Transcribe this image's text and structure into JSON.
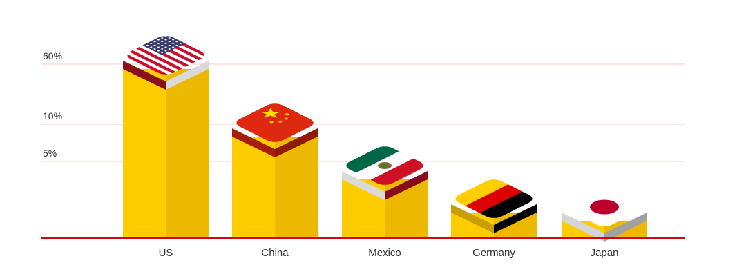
{
  "chart_data": {
    "type": "bar",
    "title": "",
    "xlabel": "",
    "ylabel": "",
    "categories": [
      "US",
      "China",
      "Mexico",
      "Germany",
      "Japan"
    ],
    "flags": [
      "us-flag",
      "china-flag",
      "mexico-flag",
      "germany-flag",
      "japan-flag"
    ],
    "y_ticks": [
      {
        "value": 60,
        "label": "60%"
      },
      {
        "value": 10,
        "label": "10%"
      },
      {
        "value": 5,
        "label": "5%"
      }
    ],
    "bar_color": "#FFCC00",
    "bar_shade_color": "#EDB900",
    "gridline_color": "#F6C9C9",
    "baseline_color": "#D40511",
    "grid": true,
    "legend": "none"
  }
}
